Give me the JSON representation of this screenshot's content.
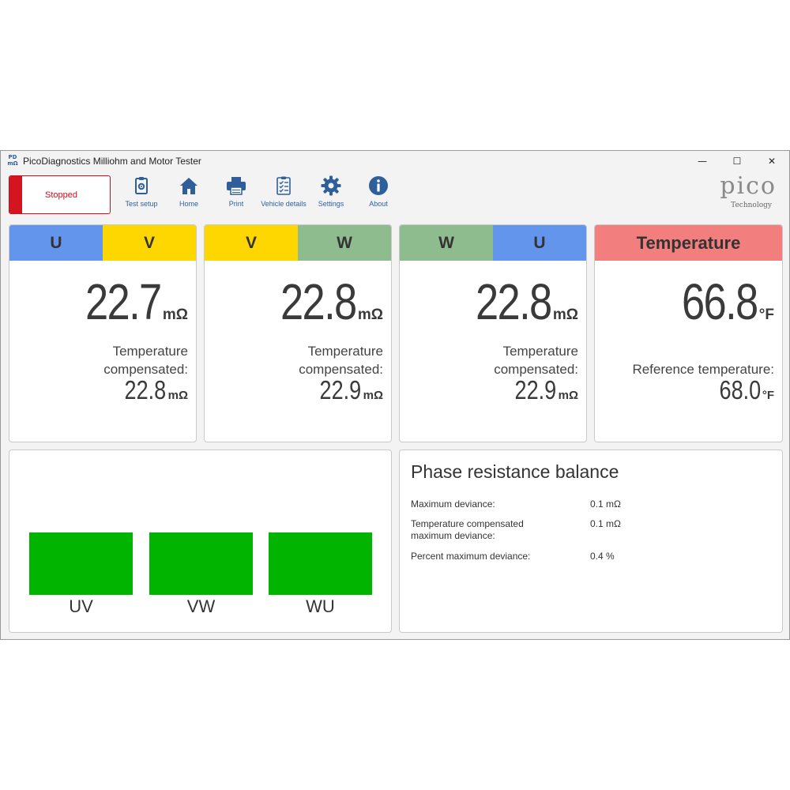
{
  "window": {
    "app_icon_text": "PD\nmΩ",
    "title": "PicoDiagnostics Milliohm and Motor Tester",
    "controls": {
      "minimize": "—",
      "maximize": "☐",
      "close": "✕"
    }
  },
  "toolbar": {
    "stop_label": "Stopped",
    "items": [
      {
        "label": "Test setup",
        "icon": "clipboard-gear-icon"
      },
      {
        "label": "Home",
        "icon": "home-icon"
      },
      {
        "label": "Print",
        "icon": "printer-icon"
      },
      {
        "label": "Vehicle details",
        "icon": "checklist-icon"
      },
      {
        "label": "Settings",
        "icon": "gear-icon"
      },
      {
        "label": "About",
        "icon": "info-icon"
      }
    ],
    "logo_word": "pico",
    "logo_sub": "Technology"
  },
  "colors": {
    "blue": "#6495ed",
    "yellow": "#ffd700",
    "green": "#8fbc8f",
    "red_header": "#f27e7e",
    "balance_ok": "#00b400",
    "stop_red": "#d4141e",
    "accent_blue": "#2f5f9a"
  },
  "cards": [
    {
      "phases": [
        "U",
        "V"
      ],
      "value": "22.7",
      "unit": "mΩ",
      "comp_label_1": "Temperature",
      "comp_label_2": "compensated:",
      "comp_value": "22.8",
      "comp_unit": "mΩ"
    },
    {
      "phases": [
        "V",
        "W"
      ],
      "value": "22.8",
      "unit": "mΩ",
      "comp_label_1": "Temperature",
      "comp_label_2": "compensated:",
      "comp_value": "22.9",
      "comp_unit": "mΩ"
    },
    {
      "phases": [
        "W",
        "U"
      ],
      "value": "22.8",
      "unit": "mΩ",
      "comp_label_1": "Temperature",
      "comp_label_2": "compensated:",
      "comp_value": "22.9",
      "comp_unit": "mΩ"
    }
  ],
  "temperature": {
    "header": "Temperature",
    "value": "66.8",
    "unit": "°F",
    "ref_label": "Reference temperature:",
    "ref_value": "68.0",
    "ref_unit": "°F"
  },
  "balance_bars": [
    "UV",
    "VW",
    "WU"
  ],
  "balance": {
    "title": "Phase resistance balance",
    "rows": [
      {
        "label_1": "Maximum deviance:",
        "label_2": "",
        "value": "0.1 mΩ"
      },
      {
        "label_1": "Temperature compensated",
        "label_2": "maximum deviance:",
        "value": "0.1 mΩ"
      },
      {
        "label_1": "Percent maximum deviance:",
        "label_2": "",
        "value": "0.4 %"
      }
    ]
  }
}
